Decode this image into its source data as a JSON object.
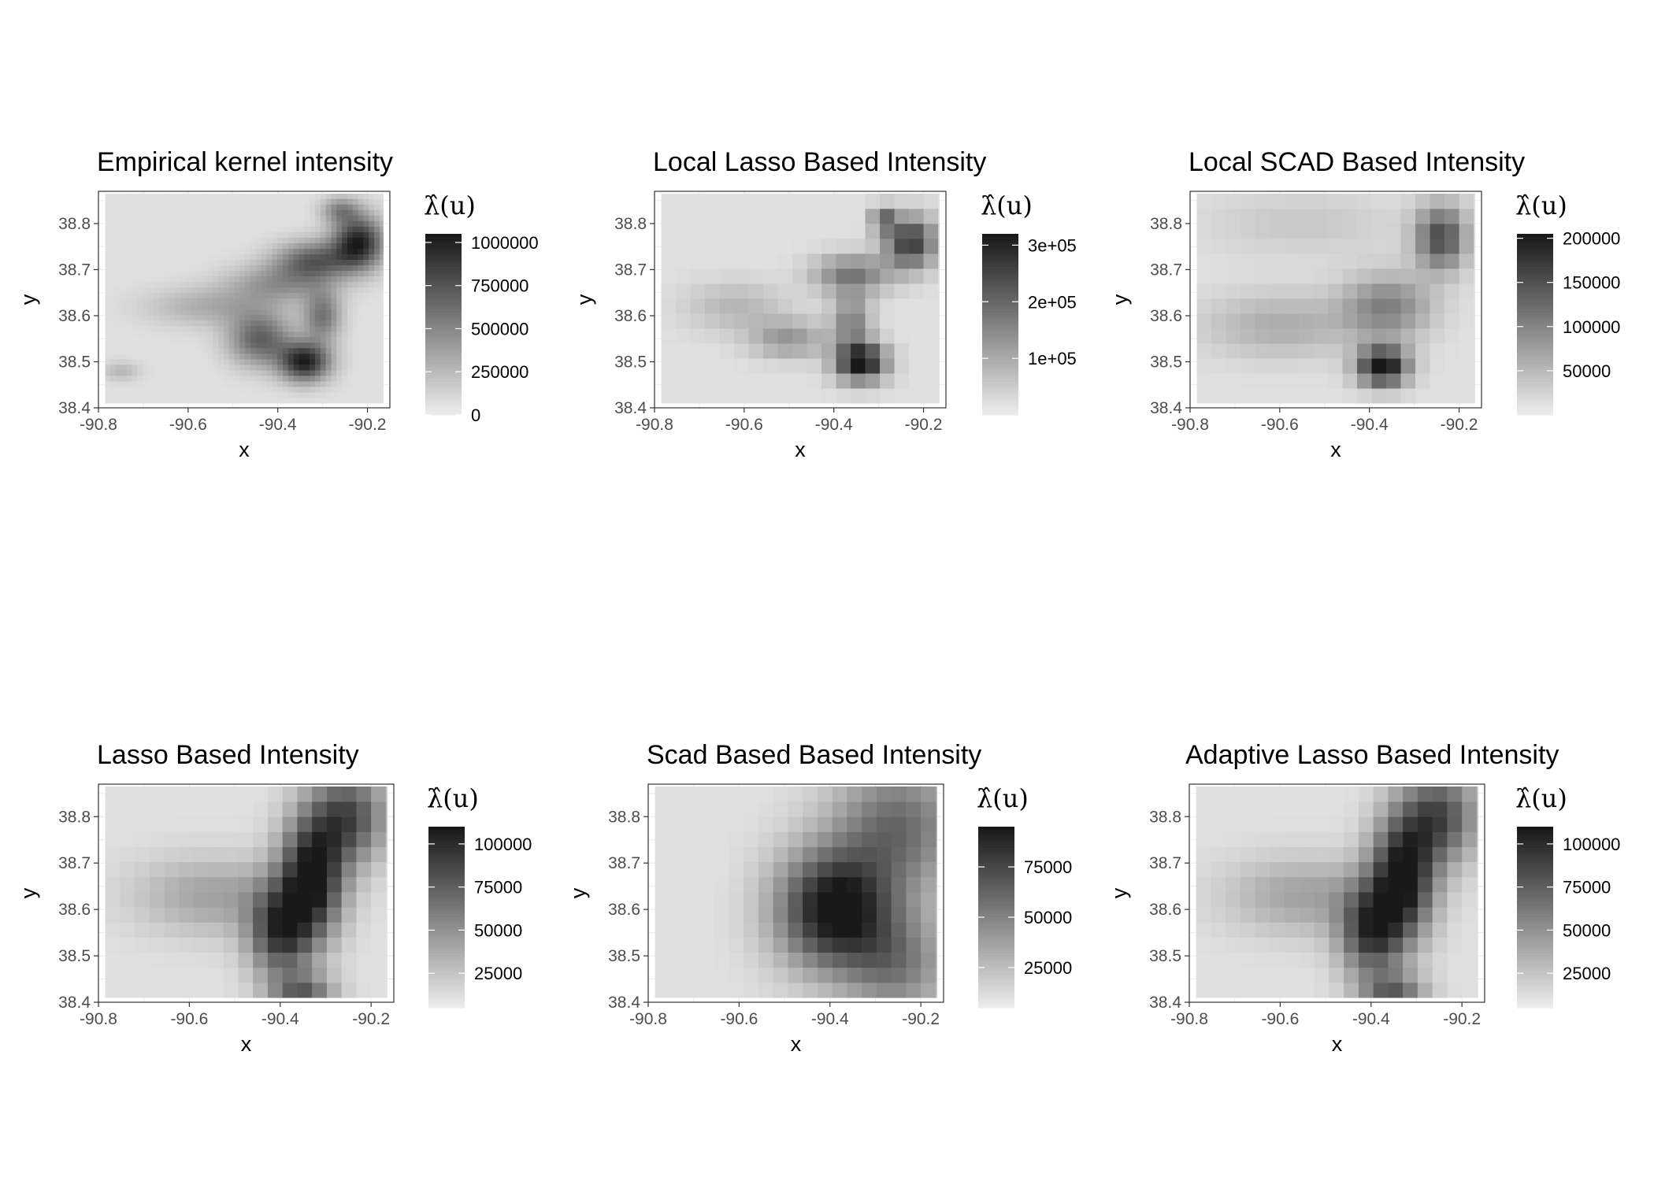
{
  "chart_data": [
    {
      "type": "heatmap",
      "title": "Empirical kernel intensity",
      "xlabel": "x",
      "ylabel": "y",
      "xlim": [
        -90.8,
        -90.15
      ],
      "ylim": [
        38.4,
        38.87
      ],
      "x_ticks": [
        "-90.8",
        "-90.6",
        "-90.4",
        "-90.2"
      ],
      "y_ticks": [
        "38.4",
        "38.5",
        "38.6",
        "38.7",
        "38.8"
      ],
      "legend": {
        "title": "λ̂(u)",
        "min": 0,
        "max": 1050000,
        "ticks": [
          "0",
          "250000",
          "500000",
          "750000",
          "1000000"
        ],
        "tick_values": [
          0,
          250000,
          500000,
          750000,
          1000000
        ]
      },
      "hotspots": [
        {
          "x": -90.22,
          "y": 38.76,
          "sx": 0.04,
          "sy": 0.04,
          "w": 0.9
        },
        {
          "x": -90.32,
          "y": 38.72,
          "sx": 0.06,
          "sy": 0.03,
          "w": 0.6
        },
        {
          "x": -90.34,
          "y": 38.5,
          "sx": 0.04,
          "sy": 0.03,
          "w": 0.9
        },
        {
          "x": -90.44,
          "y": 38.55,
          "sx": 0.05,
          "sy": 0.04,
          "w": 0.6
        },
        {
          "x": -90.3,
          "y": 38.6,
          "sx": 0.03,
          "sy": 0.04,
          "w": 0.5
        },
        {
          "x": -90.55,
          "y": 38.62,
          "sx": 0.1,
          "sy": 0.03,
          "w": 0.25
        },
        {
          "x": -90.4,
          "y": 38.67,
          "sx": 0.08,
          "sy": 0.03,
          "w": 0.35
        },
        {
          "x": -90.26,
          "y": 38.83,
          "sx": 0.03,
          "sy": 0.02,
          "w": 0.4
        },
        {
          "x": -90.75,
          "y": 38.48,
          "sx": 0.03,
          "sy": 0.015,
          "w": 0.2
        }
      ]
    },
    {
      "type": "heatmap",
      "title": "Local Lasso Based Intensity",
      "xlabel": "x",
      "ylabel": "y",
      "xlim": [
        -90.8,
        -90.15
      ],
      "ylim": [
        38.4,
        38.87
      ],
      "x_ticks": [
        "-90.8",
        "-90.6",
        "-90.4",
        "-90.2"
      ],
      "y_ticks": [
        "38.4",
        "38.5",
        "38.6",
        "38.7",
        "38.8"
      ],
      "legend": {
        "title": "λ̂(u)",
        "min": 0,
        "max": 320000,
        "ticks": [
          "1e+05",
          "2e+05",
          "3e+05"
        ],
        "tick_values": [
          100000,
          200000,
          300000
        ]
      },
      "hotspots": [
        {
          "x": -90.34,
          "y": 38.5,
          "sx": 0.04,
          "sy": 0.03,
          "w": 1.0
        },
        {
          "x": -90.23,
          "y": 38.76,
          "sx": 0.04,
          "sy": 0.04,
          "w": 0.8
        },
        {
          "x": -90.36,
          "y": 38.69,
          "sx": 0.06,
          "sy": 0.03,
          "w": 0.5
        },
        {
          "x": -90.36,
          "y": 38.59,
          "sx": 0.03,
          "sy": 0.04,
          "w": 0.45
        },
        {
          "x": -90.5,
          "y": 38.55,
          "sx": 0.06,
          "sy": 0.03,
          "w": 0.35
        },
        {
          "x": -90.62,
          "y": 38.62,
          "sx": 0.08,
          "sy": 0.04,
          "w": 0.2
        },
        {
          "x": -90.29,
          "y": 38.81,
          "sx": 0.02,
          "sy": 0.02,
          "w": 0.5
        }
      ],
      "block": 0.0325
    },
    {
      "type": "heatmap",
      "title": "Local SCAD Based Intensity",
      "xlabel": "x",
      "ylabel": "y",
      "xlim": [
        -90.8,
        -90.15
      ],
      "ylim": [
        38.4,
        38.87
      ],
      "x_ticks": [
        "-90.8",
        "-90.6",
        "-90.4",
        "-90.2"
      ],
      "y_ticks": [
        "38.4",
        "38.5",
        "38.6",
        "38.7",
        "38.8"
      ],
      "legend": {
        "title": "λ̂(u)",
        "min": 0,
        "max": 205000,
        "ticks": [
          "50000",
          "100000",
          "150000",
          "200000"
        ],
        "tick_values": [
          50000,
          100000,
          150000,
          200000
        ]
      },
      "hotspots": [
        {
          "x": -90.37,
          "y": 38.49,
          "sx": 0.04,
          "sy": 0.03,
          "w": 1.0
        },
        {
          "x": -90.24,
          "y": 38.77,
          "sx": 0.04,
          "sy": 0.05,
          "w": 0.7
        },
        {
          "x": -90.36,
          "y": 38.62,
          "sx": 0.07,
          "sy": 0.05,
          "w": 0.45
        },
        {
          "x": -90.6,
          "y": 38.58,
          "sx": 0.12,
          "sy": 0.05,
          "w": 0.25
        },
        {
          "x": -90.55,
          "y": 38.8,
          "sx": 0.15,
          "sy": 0.05,
          "w": 0.12
        }
      ],
      "block": 0.0325
    },
    {
      "type": "heatmap",
      "title": "Lasso Based Intensity",
      "xlabel": "x",
      "ylabel": "y",
      "xlim": [
        -90.8,
        -90.15
      ],
      "ylim": [
        38.4,
        38.87
      ],
      "x_ticks": [
        "-90.8",
        "-90.6",
        "-90.4",
        "-90.2"
      ],
      "y_ticks": [
        "38.4",
        "38.5",
        "38.6",
        "38.7",
        "38.8"
      ],
      "legend": {
        "title": "λ̂(u)",
        "min": 5000,
        "max": 110000,
        "ticks": [
          "25000",
          "50000",
          "75000",
          "100000"
        ],
        "tick_values": [
          25000,
          50000,
          75000,
          100000
        ]
      },
      "hotspots": [
        {
          "x": -90.33,
          "y": 38.67,
          "sx": 0.05,
          "sy": 0.09,
          "w": 0.95
        },
        {
          "x": -90.4,
          "y": 38.55,
          "sx": 0.05,
          "sy": 0.07,
          "w": 0.75
        },
        {
          "x": -90.25,
          "y": 38.8,
          "sx": 0.06,
          "sy": 0.07,
          "w": 0.7
        },
        {
          "x": -90.55,
          "y": 38.63,
          "sx": 0.12,
          "sy": 0.06,
          "w": 0.3
        },
        {
          "x": -90.35,
          "y": 38.42,
          "sx": 0.05,
          "sy": 0.03,
          "w": 0.55
        }
      ],
      "block": 0.0325
    },
    {
      "type": "heatmap",
      "title": "Scad Based Based Intensity",
      "xlabel": "x",
      "ylabel": "y",
      "xlim": [
        -90.8,
        -90.15
      ],
      "ylim": [
        38.4,
        38.87
      ],
      "x_ticks": [
        "-90.8",
        "-90.6",
        "-90.4",
        "-90.2"
      ],
      "y_ticks": [
        "38.4",
        "38.5",
        "38.6",
        "38.7",
        "38.8"
      ],
      "legend": {
        "title": "λ̂(u)",
        "min": 5000,
        "max": 95000,
        "ticks": [
          "25000",
          "50000",
          "75000"
        ],
        "tick_values": [
          25000,
          50000,
          75000
        ]
      },
      "hotspots": [
        {
          "x": -90.39,
          "y": 38.6,
          "sx": 0.09,
          "sy": 0.09,
          "w": 1.0
        },
        {
          "x": -90.25,
          "y": 38.78,
          "sx": 0.1,
          "sy": 0.1,
          "w": 0.55
        },
        {
          "x": -90.25,
          "y": 38.48,
          "sx": 0.08,
          "sy": 0.08,
          "w": 0.45
        }
      ],
      "block": 0.0325
    },
    {
      "type": "heatmap",
      "title": "Adaptive Lasso Based Intensity",
      "xlabel": "x",
      "ylabel": "y",
      "xlim": [
        -90.8,
        -90.15
      ],
      "ylim": [
        38.4,
        38.87
      ],
      "x_ticks": [
        "-90.8",
        "-90.6",
        "-90.4",
        "-90.2"
      ],
      "y_ticks": [
        "38.4",
        "38.5",
        "38.6",
        "38.7",
        "38.8"
      ],
      "legend": {
        "title": "λ̂(u)",
        "min": 5000,
        "max": 110000,
        "ticks": [
          "25000",
          "50000",
          "75000",
          "100000"
        ],
        "tick_values": [
          25000,
          50000,
          75000,
          100000
        ]
      },
      "hotspots": [
        {
          "x": -90.33,
          "y": 38.67,
          "sx": 0.05,
          "sy": 0.09,
          "w": 0.95
        },
        {
          "x": -90.4,
          "y": 38.55,
          "sx": 0.05,
          "sy": 0.07,
          "w": 0.75
        },
        {
          "x": -90.25,
          "y": 38.8,
          "sx": 0.06,
          "sy": 0.07,
          "w": 0.7
        },
        {
          "x": -90.55,
          "y": 38.63,
          "sx": 0.12,
          "sy": 0.06,
          "w": 0.3
        },
        {
          "x": -90.35,
          "y": 38.42,
          "sx": 0.05,
          "sy": 0.03,
          "w": 0.55
        }
      ],
      "block": 0.0325
    }
  ]
}
